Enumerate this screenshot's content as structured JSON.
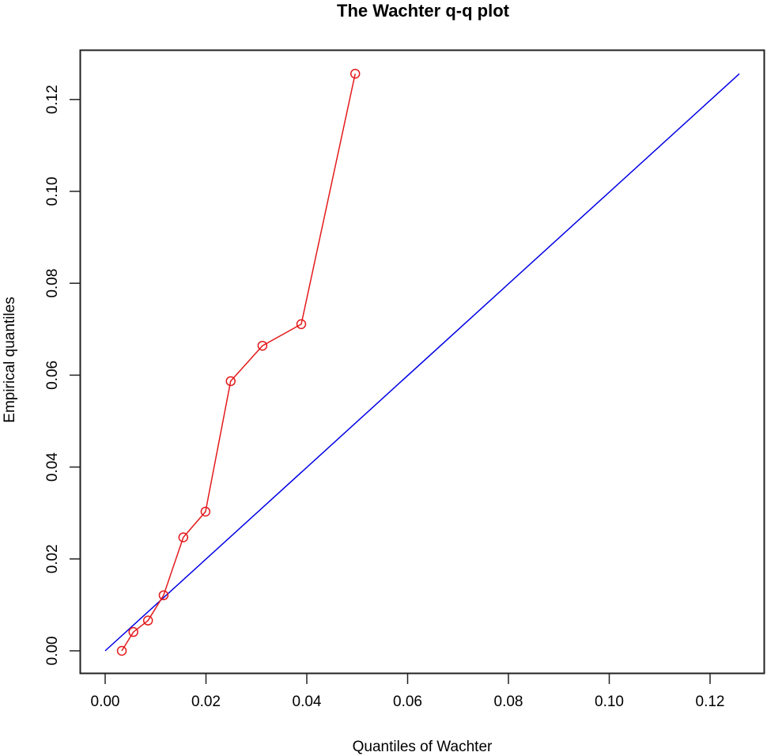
{
  "chart_data": {
    "type": "scatter",
    "title": "The Wachter q-q plot",
    "xlabel": "Quantiles of Wachter",
    "ylabel": "Empirical quantiles",
    "xlim": [
      -0.005,
      0.131
    ],
    "ylim": [
      -0.005,
      0.131
    ],
    "xticks": [
      0.0,
      0.02,
      0.04,
      0.06,
      0.08,
      0.1,
      0.12
    ],
    "yticks": [
      0.0,
      0.02,
      0.04,
      0.06,
      0.08,
      0.1,
      0.12
    ],
    "xtick_labels": [
      "0.00",
      "0.02",
      "0.04",
      "0.06",
      "0.08",
      "0.10",
      "0.12"
    ],
    "ytick_labels": [
      "0.00",
      "0.02",
      "0.04",
      "0.06",
      "0.08",
      "0.10",
      "0.12"
    ],
    "grid": false,
    "legend": null,
    "series": [
      {
        "name": "Empirical vs Wachter quantiles",
        "style": "points-and-lines",
        "marker": "open-circle",
        "color": "#e31a1c",
        "x": [
          0.0033,
          0.0056,
          0.0085,
          0.0116,
          0.0155,
          0.0199,
          0.0249,
          0.0312,
          0.0389,
          0.0496
        ],
        "y": [
          0.0,
          0.0041,
          0.0066,
          0.0121,
          0.0247,
          0.0303,
          0.0587,
          0.0664,
          0.0711,
          0.1256
        ]
      },
      {
        "name": "Reference line y = x",
        "style": "line",
        "color": "#0000e6",
        "x": [
          0.0,
          0.1258
        ],
        "y": [
          0.0,
          0.1256
        ]
      }
    ]
  },
  "colors": {
    "points": "#e31a1c",
    "reference_line": "#0000e6",
    "axis": "#000000",
    "background": "#ffffff"
  }
}
